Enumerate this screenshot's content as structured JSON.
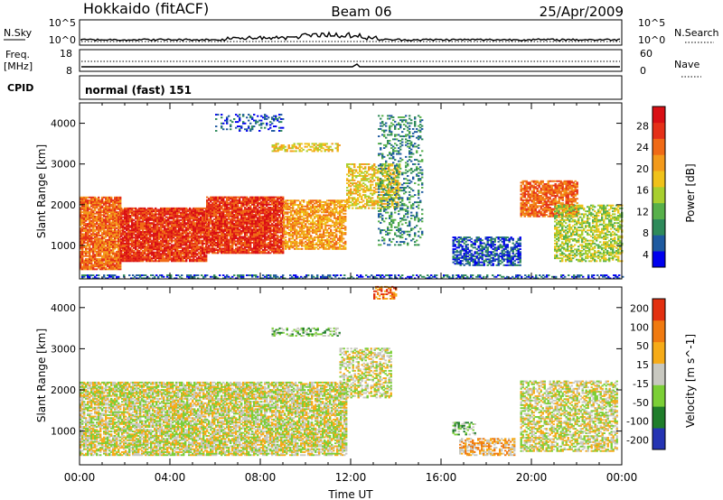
{
  "header": {
    "title_left": "Hokkaido (fitACF)",
    "title_center": "Beam 06",
    "title_right": "25/Apr/2009"
  },
  "strip_labels": {
    "nsky": "N.Sky",
    "nsearch": "N.Search",
    "freq_line1": "Freq.",
    "freq_line2": "[MHz]",
    "nave": "Nave",
    "cpid": "CPID",
    "cpid_value": "normal (fast) 151"
  },
  "strip_ticks": {
    "nsky_left": [
      "10^5",
      "10^0"
    ],
    "nsky_right": [
      "10^5",
      "10^0"
    ],
    "freq_left": [
      "18",
      "8"
    ],
    "nave_right": [
      "60",
      "0"
    ]
  },
  "chart_data": [
    {
      "type": "heatmap",
      "name": "power-panel",
      "ylabel": "Slant Range [km]",
      "ylim": [
        180,
        4500
      ],
      "yticks": [
        "1000",
        "2000",
        "3000",
        "4000"
      ],
      "xlim_hours": [
        0,
        24
      ],
      "colorbar_label": "Power [dB]",
      "colorbar_ticks": [
        "28",
        "24",
        "20",
        "16",
        "12",
        "8",
        "4"
      ],
      "colorscale": [
        "#0000ee",
        "#1e5aa0",
        "#2e8a5a",
        "#57b04a",
        "#a8cf2f",
        "#f0c21a",
        "#f39a1b",
        "#f06a16",
        "#e53018",
        "#d90f14"
      ],
      "regions": [
        {
          "t0": 0.0,
          "t1": 1.8,
          "r0": 400,
          "r1": 2200,
          "level": 7,
          "density": 0.88
        },
        {
          "t0": 1.8,
          "t1": 5.6,
          "r0": 600,
          "r1": 1900,
          "level": 8,
          "density": 0.92
        },
        {
          "t0": 5.6,
          "t1": 9.0,
          "r0": 800,
          "r1": 2200,
          "level": 8,
          "density": 0.9
        },
        {
          "t0": 9.0,
          "t1": 11.8,
          "r0": 900,
          "r1": 2100,
          "level": 6,
          "density": 0.72
        },
        {
          "t0": 11.8,
          "t1": 14.2,
          "r0": 1900,
          "r1": 3000,
          "level": 5,
          "density": 0.55
        },
        {
          "t0": 13.2,
          "t1": 15.2,
          "r0": 1000,
          "r1": 4200,
          "level": 2,
          "density": 0.28
        },
        {
          "t0": 8.5,
          "t1": 11.5,
          "r0": 3300,
          "r1": 3500,
          "level": 5,
          "density": 0.5
        },
        {
          "t0": 6.0,
          "t1": 9.0,
          "r0": 3800,
          "r1": 4200,
          "level": 1,
          "density": 0.25
        },
        {
          "t0": 16.5,
          "t1": 19.5,
          "r0": 500,
          "r1": 1200,
          "level": 1,
          "density": 0.6
        },
        {
          "t0": 19.5,
          "t1": 22.0,
          "r0": 1700,
          "r1": 2600,
          "level": 7,
          "density": 0.78
        },
        {
          "t0": 21.0,
          "t1": 24.0,
          "r0": 600,
          "r1": 2000,
          "level": 4,
          "density": 0.58
        },
        {
          "t0": 0.0,
          "t1": 24.0,
          "r0": 180,
          "r1": 260,
          "level": 1,
          "density": 0.45
        }
      ]
    },
    {
      "type": "heatmap",
      "name": "velocity-panel",
      "ylabel": "Slant Range [km]",
      "xlabel": "Time UT",
      "xticks": [
        "00:00",
        "04:00",
        "08:00",
        "12:00",
        "16:00",
        "20:00",
        "00:00"
      ],
      "ylim": [
        180,
        4500
      ],
      "yticks": [
        "1000",
        "2000",
        "3000",
        "4000"
      ],
      "xlim_hours": [
        0,
        24
      ],
      "colorbar_label": "Velocity [m s^-1]",
      "colorbar_ticks": [
        "200",
        "100",
        "50",
        "15",
        "-15",
        "-50",
        "-100",
        "-200"
      ],
      "colorscale": [
        "#2534b3",
        "#1f7d2a",
        "#7bcf36",
        "#c8c8c0",
        "#f6ab18",
        "#f07a10",
        "#e33010"
      ],
      "regions": [
        {
          "t0": 0.0,
          "t1": 11.8,
          "r0": 400,
          "r1": 2200,
          "level": 3,
          "density": 0.78
        },
        {
          "t0": 11.5,
          "t1": 13.8,
          "r0": 1800,
          "r1": 3000,
          "level": 3,
          "density": 0.5
        },
        {
          "t0": 8.5,
          "t1": 11.5,
          "r0": 3300,
          "r1": 3500,
          "level": 2,
          "density": 0.4
        },
        {
          "t0": 16.8,
          "t1": 19.2,
          "r0": 400,
          "r1": 800,
          "level": 4,
          "density": 0.6
        },
        {
          "t0": 16.5,
          "t1": 17.5,
          "r0": 900,
          "r1": 1200,
          "level": 2,
          "density": 0.5
        },
        {
          "t0": 19.5,
          "t1": 23.8,
          "r0": 500,
          "r1": 2200,
          "level": 3,
          "density": 0.6
        },
        {
          "t0": 13.0,
          "t1": 14.0,
          "r0": 4200,
          "r1": 4500,
          "level": 5,
          "density": 0.5
        }
      ]
    }
  ]
}
